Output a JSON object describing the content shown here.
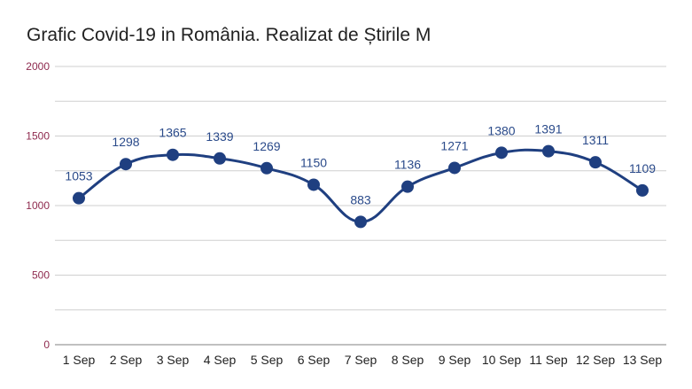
{
  "chart_data": {
    "type": "line",
    "title": "Grafic Covid-19 in România. Realizat de Știrile M",
    "xlabel": "",
    "ylabel": "",
    "categories": [
      "1 Sep",
      "2 Sep",
      "3 Sep",
      "4 Sep",
      "5 Sep",
      "6 Sep",
      "7 Sep",
      "8 Sep",
      "9 Sep",
      "10 Sep",
      "11 Sep",
      "12 Sep",
      "13 Sep"
    ],
    "series": [
      {
        "values": [
          1053,
          1298,
          1365,
          1339,
          1269,
          1150,
          883,
          1136,
          1271,
          1380,
          1391,
          1311,
          1109
        ]
      }
    ],
    "ylim": [
      0,
      2000
    ],
    "yticks": [
      "0",
      "500",
      "1000",
      "1500",
      "2000"
    ],
    "grid": true,
    "legend": "none",
    "line_color": "#1f3f80",
    "label_color": "#2a4a8a",
    "ytick_color": "#8e2a4e"
  }
}
